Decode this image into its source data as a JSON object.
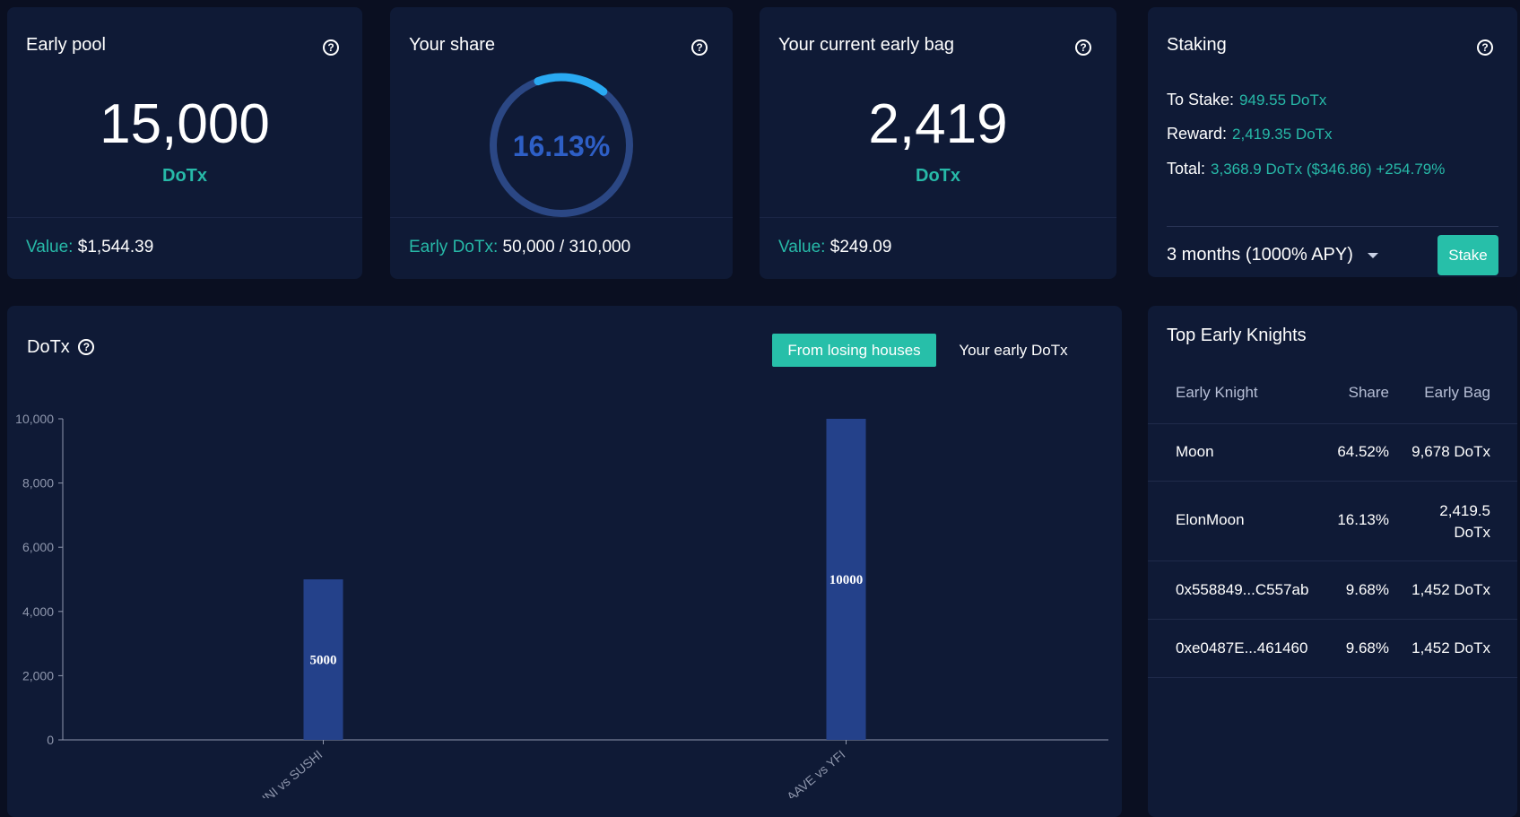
{
  "early_pool": {
    "title": "Early pool",
    "value": "15,000",
    "unit": "DoTx",
    "foot_label": "Value:",
    "foot_value": "$1,544.39"
  },
  "your_share": {
    "title": "Your share",
    "percent": "16.13%",
    "fraction": 0.1613,
    "foot_label": "Early DoTx:",
    "foot_value": "50,000 / 310,000"
  },
  "early_bag": {
    "title": "Your current early bag",
    "value": "2,419",
    "unit": "DoTx",
    "foot_label": "Value:",
    "foot_value": "$249.09"
  },
  "staking": {
    "title": "Staking",
    "to_stake_label": "To Stake:",
    "to_stake_value": "949.55 DoTx",
    "reward_label": "Reward:",
    "reward_value": "2,419.35 DoTx",
    "total_label": "Total:",
    "total_value": "3,368.9 DoTx ($346.86) +254.79%",
    "duration": "3 months (1000% APY)",
    "stake_button": "Stake"
  },
  "chart_panel": {
    "title": "DoTx",
    "tab_active": "From losing houses",
    "tab_inactive": "Your early DoTx"
  },
  "chart_data": {
    "type": "bar",
    "categories": [
      "UNI vs SUSHI",
      "AAVE vs YFI"
    ],
    "values": [
      5000,
      10000
    ],
    "ylim": [
      0,
      10000
    ],
    "yticks": [
      "0",
      "2,000",
      "4,000",
      "6,000",
      "8,000",
      "10,000"
    ],
    "data_labels": [
      "5000",
      "10000"
    ],
    "bar_color": "#24418a"
  },
  "knights": {
    "title": "Top Early Knights",
    "headers": [
      "Early Knight",
      "Share",
      "Early Bag"
    ],
    "rows": [
      {
        "name": "Moon",
        "share": "64.52%",
        "bag": "9,678 DoTx"
      },
      {
        "name": "ElonMoon",
        "share": "16.13%",
        "bag": "2,419.5 DoTx"
      },
      {
        "name": "0x558849...C557ab",
        "share": "9.68%",
        "bag": "1,452 DoTx"
      },
      {
        "name": "0xe0487E...461460",
        "share": "9.68%",
        "bag": "1,452 DoTx"
      }
    ]
  },
  "colors": {
    "accent": "#27bfa9",
    "card": "#0f1a36",
    "background": "#0a0f21",
    "ring": "#2b4784",
    "ring_arc": "#29a9f2",
    "percent_text": "#2e5fc6"
  }
}
